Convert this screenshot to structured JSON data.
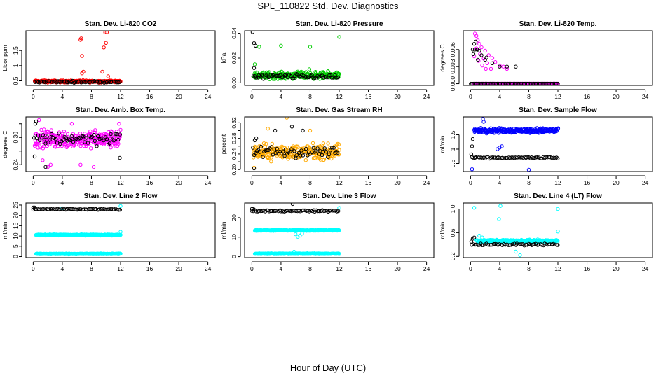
{
  "figure": {
    "title": "SPL_110822  Std. Dev. Diagnostics",
    "xlabel": "Hour of Day (UTC)"
  },
  "chart_data": [
    {
      "type": "scatter",
      "title": "Stan. Dev. Li-820 CO2",
      "ylabel": "Licor ppm",
      "xlim": [
        -1,
        25
      ],
      "xticks": [
        0,
        4,
        8,
        12,
        16,
        20,
        24
      ],
      "ylim": [
        0.35,
        2.15
      ],
      "yticks": [
        0.5,
        1.0,
        1.5
      ],
      "ytick_labels": [
        "0.5",
        "1",
        "1.5"
      ],
      "series": [
        {
          "name": "primary",
          "color": "#ff0000",
          "x_range": [
            0.2,
            12.0
          ],
          "base": 0.48,
          "spread": 0.05,
          "outliers": [
            [
              6.5,
              1.85
            ],
            [
              6.6,
              1.9
            ],
            [
              6.7,
              1.32
            ],
            [
              6.7,
              0.75
            ],
            [
              6.9,
              0.8
            ],
            [
              9.7,
              1.6
            ],
            [
              9.9,
              2.1
            ],
            [
              10.1,
              2.1
            ],
            [
              10.0,
              1.75
            ],
            [
              10.3,
              0.65
            ],
            [
              9.5,
              0.8
            ]
          ]
        },
        {
          "name": "secondary",
          "color": "#000000",
          "x_range": [
            0.3,
            11.9
          ],
          "base": 0.47,
          "spread": 0.04,
          "outliers": []
        }
      ]
    },
    {
      "type": "scatter",
      "title": "Stan. Dev. Li-820 Pressure",
      "ylabel": "kPa",
      "xlim": [
        -1,
        25
      ],
      "xticks": [
        0,
        4,
        8,
        12,
        16,
        20,
        24
      ],
      "ylim": [
        -0.002,
        0.042
      ],
      "yticks": [
        0.0,
        0.02,
        0.04
      ],
      "ytick_labels": [
        "0.00",
        "0.02",
        "0.04"
      ],
      "series": [
        {
          "name": "primary",
          "color": "#00cc00",
          "x_range": [
            0.3,
            12.0
          ],
          "base": 0.006,
          "spread": 0.004,
          "outliers": [
            [
              1.0,
              0.029
            ],
            [
              4.0,
              0.03
            ],
            [
              8.0,
              0.029
            ],
            [
              12.0,
              0.037
            ],
            [
              0.4,
              0.015
            ],
            [
              7.9,
              0.011
            ]
          ]
        },
        {
          "name": "secondary",
          "color": "#000000",
          "x_range": [
            0.2,
            11.8
          ],
          "base": 0.005,
          "spread": 0.003,
          "outliers": [
            [
              0.1,
              0.041
            ],
            [
              0.3,
              0.032
            ],
            [
              0.5,
              0.03
            ],
            [
              0.3,
              0.012
            ]
          ]
        }
      ]
    },
    {
      "type": "scatter",
      "title": "Stan. Dev. Li-820 Temp.",
      "ylabel": "degrees C",
      "xlim": [
        -1,
        25
      ],
      "xticks": [
        0,
        4,
        8,
        12,
        16,
        20,
        24
      ],
      "ylim": [
        -0.0003,
        0.0093
      ],
      "yticks": [
        0.0,
        0.003,
        0.006
      ],
      "ytick_labels": [
        "0.000",
        "0.003",
        "0.006"
      ],
      "series": [
        {
          "name": "primary",
          "color": "#ff00ff",
          "x_range": [
            0.5,
            12.0
          ],
          "base": 0.0,
          "spread": 0.0,
          "outliers": [
            [
              0.6,
              0.0088
            ],
            [
              0.8,
              0.0084
            ],
            [
              1.0,
              0.0076
            ],
            [
              1.2,
              0.007
            ],
            [
              1.5,
              0.0064
            ],
            [
              2.0,
              0.0058
            ],
            [
              2.5,
              0.005
            ],
            [
              3.0,
              0.0045
            ],
            [
              3.4,
              0.0038
            ],
            [
              4.0,
              0.0032
            ],
            [
              4.5,
              0.003
            ],
            [
              5.0,
              0.0026
            ],
            [
              0.8,
              0.0062
            ],
            [
              1.3,
              0.0052
            ],
            [
              1.8,
              0.0044
            ],
            [
              2.3,
              0.0036
            ],
            [
              2.8,
              0.0026
            ],
            [
              0.5,
              0.0048
            ],
            [
              1.1,
              0.004
            ],
            [
              1.6,
              0.0032
            ],
            [
              2.1,
              0.0026
            ]
          ]
        },
        {
          "name": "secondary",
          "color": "#000000",
          "x_range": [
            0.0,
            12.0
          ],
          "base": 0.0,
          "spread": 0.0,
          "outliers": [
            [
              0.3,
              0.006
            ],
            [
              0.6,
              0.006
            ],
            [
              0.9,
              0.006
            ],
            [
              0.5,
              0.007
            ],
            [
              0.7,
              0.0074
            ],
            [
              1.2,
              0.0058
            ],
            [
              1.5,
              0.005
            ],
            [
              2.2,
              0.0046
            ],
            [
              3.0,
              0.0036
            ],
            [
              4.0,
              0.003
            ],
            [
              5.0,
              0.003
            ],
            [
              6.2,
              0.003
            ],
            [
              1.0,
              0.0042
            ],
            [
              2.0,
              0.0042
            ],
            [
              0.4,
              0.0052
            ]
          ]
        }
      ]
    },
    {
      "type": "scatter",
      "title": "Stan. Dev. Amb. Box Temp.",
      "ylabel": "degrees C",
      "xlim": [
        -1,
        25
      ],
      "xticks": [
        0,
        4,
        8,
        12,
        16,
        20,
        24
      ],
      "ylim": [
        0.225,
        0.345
      ],
      "yticks": [
        0.24,
        0.27,
        0.3,
        0.33
      ],
      "ytick_labels": [
        "0.24",
        "",
        "0.30",
        ""
      ],
      "series": [
        {
          "name": "primary",
          "color": "#ff00ff",
          "x_range": [
            0.2,
            12.0
          ],
          "base": 0.296,
          "spread": 0.028,
          "outliers": [
            [
              0.8,
              0.338
            ],
            [
              1.3,
              0.25
            ],
            [
              2.0,
              0.235
            ],
            [
              2.4,
              0.24
            ],
            [
              6.5,
              0.24
            ],
            [
              8.3,
              0.235
            ],
            [
              5.3,
              0.33
            ],
            [
              11.8,
              0.33
            ]
          ]
        },
        {
          "name": "secondary",
          "color": "#000000",
          "x_range": [
            0.1,
            11.9
          ],
          "base": 0.298,
          "spread": 0.022,
          "outliers": [
            [
              0.3,
              0.33
            ],
            [
              0.4,
              0.335
            ],
            [
              1.7,
              0.235
            ],
            [
              11.9,
              0.255
            ],
            [
              0.2,
              0.258
            ]
          ]
        }
      ]
    },
    {
      "type": "scatter",
      "title": "Stan. Dev. Gas Stream RH",
      "ylabel": "percent",
      "xlim": [
        -1,
        25
      ],
      "xticks": [
        0,
        4,
        8,
        12,
        16,
        20,
        24
      ],
      "ylim": [
        0.195,
        0.335
      ],
      "yticks": [
        0.2,
        0.22,
        0.24,
        0.26,
        0.28,
        0.3,
        0.32
      ],
      "ytick_labels": [
        "0.20",
        "",
        "0.24",
        "",
        "0.28",
        "",
        "0.32"
      ],
      "series": [
        {
          "name": "primary",
          "color": "#ffaa00",
          "x_range": [
            0.2,
            12.0
          ],
          "base": 0.245,
          "spread": 0.028,
          "outliers": [
            [
              4.8,
              0.333
            ],
            [
              2.2,
              0.305
            ],
            [
              8.0,
              0.3
            ],
            [
              0.3,
              0.205
            ]
          ]
        },
        {
          "name": "secondary",
          "color": "#000000",
          "x_range": [
            0.1,
            11.8
          ],
          "base": 0.245,
          "spread": 0.022,
          "outliers": [
            [
              0.3,
              0.203
            ],
            [
              0.4,
              0.275
            ],
            [
              0.6,
              0.28
            ],
            [
              3.2,
              0.3
            ],
            [
              5.5,
              0.31
            ],
            [
              7.0,
              0.3
            ]
          ]
        }
      ]
    },
    {
      "type": "scatter",
      "title": "Stan. Dev. Sample Flow",
      "ylabel": "ml/min",
      "xlim": [
        -1,
        25
      ],
      "xticks": [
        0,
        4,
        8,
        12,
        16,
        20,
        24
      ],
      "ylim": [
        0.22,
        2.12
      ],
      "yticks": [
        0.5,
        1.0,
        1.5
      ],
      "ytick_labels": [
        "0.5",
        "1",
        "1.5"
      ],
      "series": [
        {
          "name": "primary",
          "color": "#0000ff",
          "x_range": [
            0.5,
            12.0
          ],
          "base": 1.65,
          "spread": 0.12,
          "outliers": [
            [
              0.2,
              0.3
            ],
            [
              8.0,
              0.28
            ],
            [
              3.7,
              1.0
            ],
            [
              4.0,
              1.05
            ],
            [
              4.3,
              1.1
            ],
            [
              1.7,
              2.05
            ],
            [
              1.8,
              1.95
            ]
          ]
        },
        {
          "name": "secondary",
          "color": "#000000",
          "x_range": [
            0.2,
            12.0
          ],
          "base": 0.7,
          "spread": 0.04,
          "outliers": [
            [
              0.2,
              1.1
            ],
            [
              0.3,
              1.35
            ],
            [
              0.1,
              0.82
            ]
          ]
        }
      ]
    },
    {
      "type": "scatter",
      "title": "Stan. Dev. Line 2 Flow",
      "ylabel": "ml/min",
      "xlim": [
        -1,
        25
      ],
      "xticks": [
        0,
        4,
        8,
        12,
        16,
        20,
        24
      ],
      "ylim": [
        -0.5,
        26.0
      ],
      "yticks": [
        0,
        5,
        10,
        15,
        20,
        25
      ],
      "ytick_labels": [
        "0",
        "5",
        "10",
        "15",
        "20",
        "25"
      ],
      "series": [
        {
          "name": "primary",
          "color": "#00ffff",
          "x_range": [
            0.4,
            12.0
          ],
          "base": 10.5,
          "spread": 0.4,
          "outliers": [
            [
              12.0,
              24.5
            ],
            [
              4.0,
              23.5
            ],
            [
              12.0,
              12.0
            ]
          ]
        },
        {
          "name": "tertiary",
          "color": "#00ffff",
          "x_range": [
            0.4,
            12.0
          ],
          "base": 1.3,
          "spread": 0.3,
          "outliers": []
        },
        {
          "name": "secondary",
          "color": "#000000",
          "x_range": [
            0.0,
            11.9
          ],
          "base": 23.0,
          "spread": 0.5,
          "outliers": [
            [
              0.0,
              23.8
            ],
            [
              0.2,
              23.8
            ]
          ]
        }
      ]
    },
    {
      "type": "scatter",
      "title": "Stan. Dev. Line 3 Flow",
      "ylabel": "ml/min",
      "xlim": [
        -1,
        25
      ],
      "xticks": [
        0,
        4,
        8,
        12,
        16,
        20,
        24
      ],
      "ylim": [
        -0.5,
        27.5
      ],
      "yticks": [
        0,
        10,
        20
      ],
      "ytick_labels": [
        "0",
        "10",
        "20"
      ],
      "series": [
        {
          "name": "primary",
          "color": "#00ffff",
          "x_range": [
            0.4,
            12.0
          ],
          "base": 13.5,
          "spread": 0.4,
          "outliers": [
            [
              12.0,
              25.0
            ],
            [
              6.3,
              10.2
            ],
            [
              6.0,
              11.5
            ],
            [
              6.6,
              10.8
            ],
            [
              6.9,
              11.8
            ]
          ]
        },
        {
          "name": "tertiary",
          "color": "#00ffff",
          "x_range": [
            0.4,
            12.0
          ],
          "base": 1.5,
          "spread": 0.3,
          "outliers": [
            [
              5.8,
              2.5
            ]
          ]
        },
        {
          "name": "secondary",
          "color": "#000000",
          "x_range": [
            0.0,
            11.9
          ],
          "base": 23.5,
          "spread": 0.5,
          "outliers": [
            [
              0.0,
              24.5
            ],
            [
              0.2,
              24.5
            ],
            [
              5.6,
              27.0
            ]
          ]
        }
      ]
    },
    {
      "type": "scatter",
      "title": "Stan. Dev. Line 4 (LT) Flow",
      "ylabel": "ml/min",
      "xlim": [
        -1,
        25
      ],
      "xticks": [
        0,
        4,
        8,
        12,
        16,
        20,
        24
      ],
      "ylim": [
        0.18,
        1.1
      ],
      "yticks": [
        0.2,
        0.6,
        1.0
      ],
      "ytick_labels": [
        "0.2",
        "0.6",
        "1.0"
      ],
      "series": [
        {
          "name": "primary",
          "color": "#00ffff",
          "x_range": [
            0.8,
            12.0
          ],
          "base": 0.46,
          "spread": 0.03,
          "outliers": [
            [
              0.5,
              1.02
            ],
            [
              4.1,
              1.05
            ],
            [
              3.9,
              0.83
            ],
            [
              12.0,
              1.0
            ],
            [
              12.0,
              0.62
            ],
            [
              6.8,
              0.22
            ],
            [
              6.2,
              0.28
            ],
            [
              1.2,
              0.55
            ],
            [
              1.6,
              0.52
            ]
          ]
        },
        {
          "name": "secondary",
          "color": "#000000",
          "x_range": [
            0.2,
            12.0
          ],
          "base": 0.4,
          "spread": 0.025,
          "outliers": [
            [
              0.1,
              0.45
            ],
            [
              0.3,
              0.5
            ],
            [
              0.5,
              0.52
            ]
          ]
        }
      ]
    }
  ]
}
